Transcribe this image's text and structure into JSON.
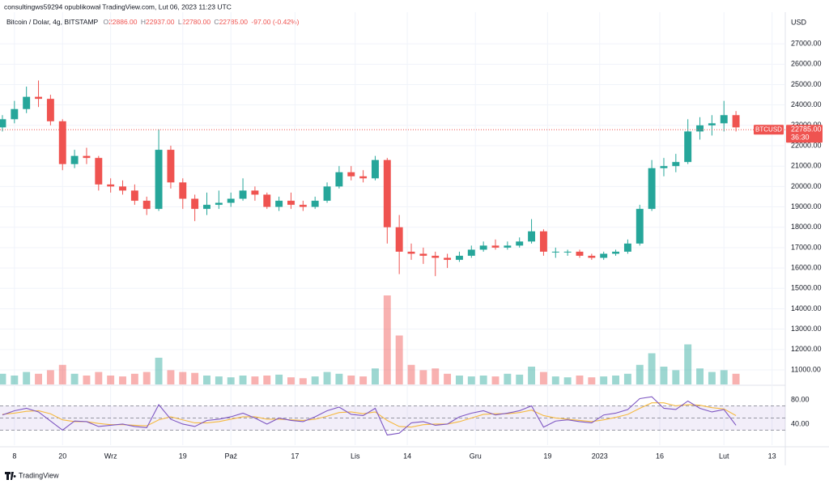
{
  "header": {
    "publisher": "consultingws59294 opublikował TradingView.com, Lut 06, 2023 11:23 UTC",
    "symbol": "Bitcoin / Dolar, 4g, BITSTAMP",
    "ohlc": [
      {
        "key": "O",
        "value": "22886.00"
      },
      {
        "key": "H",
        "value": "22937.00"
      },
      {
        "key": "L",
        "value": "22780.00"
      },
      {
        "key": "C",
        "value": "22785.00"
      }
    ],
    "change": "-97.00 (-0.42%)"
  },
  "footer": {
    "logo": "TradingView"
  },
  "chart_data": {
    "type": "candlestick",
    "currency": "USD",
    "grid": true,
    "up_color": "#26a69a",
    "down_color": "#ef5350",
    "x": [
      -3,
      0,
      3,
      6,
      9,
      12,
      15,
      18,
      21,
      24,
      27,
      30,
      33,
      36,
      39,
      42,
      45,
      48,
      51,
      54,
      57,
      60,
      63,
      66,
      69,
      72,
      75,
      78,
      81,
      84,
      87,
      90,
      93,
      96,
      99,
      102,
      105,
      108,
      111,
      114,
      117,
      120,
      123,
      126,
      129,
      132,
      135,
      138,
      141,
      144,
      147,
      150,
      153,
      156,
      159,
      162,
      165,
      168,
      171,
      174,
      177,
      180
    ],
    "open": [
      22900,
      23300,
      23800,
      24400,
      24300,
      23200,
      21100,
      21500,
      21400,
      20100,
      20000,
      19800,
      19300,
      18900,
      21800,
      20200,
      19400,
      18900,
      19100,
      19200,
      19400,
      19800,
      19600,
      19000,
      19300,
      19100,
      19000,
      19300,
      20000,
      20700,
      20500,
      20400,
      21300,
      18000,
      16800,
      16700,
      16600,
      16500,
      16400,
      16600,
      16900,
      17100,
      17000,
      17100,
      17300,
      17800,
      16800,
      16800,
      16800,
      16600,
      16500,
      16700,
      16800,
      17200,
      18900,
      20900,
      21000,
      21200,
      22700,
      23000,
      23100,
      23500
    ],
    "high": [
      23500,
      24200,
      24900,
      25200,
      24500,
      23300,
      21800,
      21900,
      21500,
      20400,
      20300,
      20100,
      19500,
      22800,
      22000,
      20400,
      19600,
      19700,
      19800,
      19700,
      20400,
      20000,
      19700,
      19500,
      19700,
      19300,
      19500,
      20200,
      21000,
      21000,
      20800,
      21500,
      21400,
      18600,
      17200,
      17000,
      16800,
      16700,
      16800,
      17100,
      17300,
      17400,
      17300,
      17500,
      18400,
      17900,
      17000,
      16900,
      16900,
      16700,
      16800,
      16900,
      17400,
      19100,
      21300,
      21400,
      21600,
      23300,
      23400,
      23500,
      24200,
      23700
    ],
    "low": [
      22700,
      23100,
      23600,
      23900,
      23000,
      20800,
      20900,
      21100,
      19800,
      19700,
      19600,
      19100,
      18600,
      18800,
      19900,
      18900,
      18300,
      18600,
      18900,
      19000,
      19300,
      19300,
      18900,
      18800,
      18900,
      18800,
      18900,
      19200,
      19900,
      20300,
      20200,
      20300,
      17200,
      15700,
      16400,
      16200,
      15600,
      16000,
      16300,
      16500,
      16800,
      16900,
      16900,
      17000,
      17200,
      16600,
      16500,
      16600,
      16500,
      16400,
      16400,
      16600,
      16700,
      17100,
      18800,
      20500,
      20700,
      21100,
      22300,
      22500,
      22700,
      22700
    ],
    "close": [
      23300,
      23800,
      24400,
      24300,
      23200,
      21100,
      21500,
      21400,
      20100,
      20000,
      19800,
      19300,
      18900,
      21800,
      20200,
      19400,
      18900,
      19100,
      19200,
      19400,
      19800,
      19600,
      19000,
      19300,
      19100,
      19000,
      19300,
      20000,
      20700,
      20500,
      20400,
      21300,
      18000,
      16800,
      16700,
      16600,
      16500,
      16400,
      16600,
      16900,
      17100,
      17000,
      17100,
      17300,
      17800,
      16800,
      16800,
      16800,
      16600,
      16500,
      16700,
      16800,
      17200,
      18900,
      20900,
      21000,
      21200,
      22700,
      23000,
      23100,
      23500,
      22900
    ],
    "xlim": [
      -3.6,
      192.3
    ],
    "xticks": [
      {
        "value": 0,
        "label": "8"
      },
      {
        "value": 12,
        "label": "20"
      },
      {
        "value": 24,
        "label": "Wrz"
      },
      {
        "value": 42,
        "label": "19"
      },
      {
        "value": 54,
        "label": "Paź"
      },
      {
        "value": 70,
        "label": "17"
      },
      {
        "value": 85,
        "label": "Lis"
      },
      {
        "value": 98,
        "label": "14"
      },
      {
        "value": 115,
        "label": "Gru"
      },
      {
        "value": 133,
        "label": "19"
      },
      {
        "value": 146,
        "label": "2023"
      },
      {
        "value": 161,
        "label": "16"
      },
      {
        "value": 177,
        "label": "Lut"
      },
      {
        "value": 189,
        "label": "13"
      }
    ],
    "ylim": [
      10286,
      29150
    ],
    "yticks": [
      {
        "value": 11000,
        "label": "11000.00"
      },
      {
        "value": 12000,
        "label": "12000.00"
      },
      {
        "value": 13000,
        "label": "13000.00"
      },
      {
        "value": 14000,
        "label": "14000.00"
      },
      {
        "value": 15000,
        "label": "15000.00"
      },
      {
        "value": 16000,
        "label": "16000.00"
      },
      {
        "value": 17000,
        "label": "17000.00"
      },
      {
        "value": 18000,
        "label": "18000.00"
      },
      {
        "value": 19000,
        "label": "19000.00"
      },
      {
        "value": 20000,
        "label": "20000.00"
      },
      {
        "value": 21000,
        "label": "21000.00"
      },
      {
        "value": 22000,
        "label": "22000.00"
      },
      {
        "value": 23000,
        "label": "23000.00"
      },
      {
        "value": 24000,
        "label": "24000.00"
      },
      {
        "value": 25000,
        "label": "25000.00"
      },
      {
        "value": 26000,
        "label": "26000.00"
      },
      {
        "value": 27000,
        "label": "27000.00"
      }
    ],
    "volume": {
      "lim": [
        0,
        100
      ],
      "values": [
        12,
        10,
        14,
        12,
        16,
        22,
        12,
        10,
        14,
        10,
        9,
        12,
        14,
        30,
        16,
        14,
        13,
        10,
        9,
        8,
        10,
        9,
        10,
        11,
        8,
        7,
        9,
        14,
        12,
        10,
        9,
        18,
        100,
        55,
        22,
        16,
        18,
        12,
        10,
        9,
        10,
        9,
        12,
        11,
        20,
        14,
        9,
        8,
        10,
        8,
        9,
        10,
        12,
        22,
        35,
        20,
        16,
        45,
        18,
        14,
        16,
        12
      ]
    },
    "rsi": {
      "color": "#7e57c2",
      "signal_color": "#f5b940",
      "ylim": [
        5.3,
        101.3
      ],
      "yticks": [
        {
          "value": 80,
          "label": "80.00"
        },
        {
          "value": 40,
          "label": "40.00"
        }
      ],
      "band_upper": 70,
      "band_middle": 50,
      "band_lower": 30,
      "values": [
        55,
        62,
        66,
        60,
        45,
        30,
        45,
        44,
        36,
        38,
        40,
        36,
        34,
        72,
        48,
        40,
        36,
        46,
        48,
        52,
        58,
        50,
        40,
        50,
        46,
        44,
        52,
        62,
        68,
        56,
        54,
        66,
        22,
        25,
        42,
        44,
        38,
        40,
        52,
        58,
        62,
        55,
        58,
        62,
        70,
        35,
        45,
        47,
        44,
        42,
        55,
        58,
        64,
        82,
        85,
        66,
        64,
        78,
        66,
        60,
        64,
        38
      ],
      "signal": [
        56,
        58,
        61,
        62,
        57,
        47,
        44,
        44,
        41,
        39,
        39,
        38,
        37,
        47,
        52,
        47,
        42,
        42,
        44,
        48,
        52,
        52,
        48,
        48,
        47,
        46,
        48,
        53,
        59,
        60,
        57,
        60,
        46,
        36,
        35,
        39,
        40,
        40,
        44,
        50,
        56,
        57,
        57,
        59,
        63,
        54,
        50,
        48,
        46,
        44,
        47,
        51,
        56,
        66,
        75,
        75,
        70,
        72,
        71,
        67,
        65,
        54
      ]
    },
    "last_price": 22785,
    "price_tag": {
      "symbol": "BTCUSD",
      "price": "22785.00",
      "countdown": "36:30"
    }
  }
}
